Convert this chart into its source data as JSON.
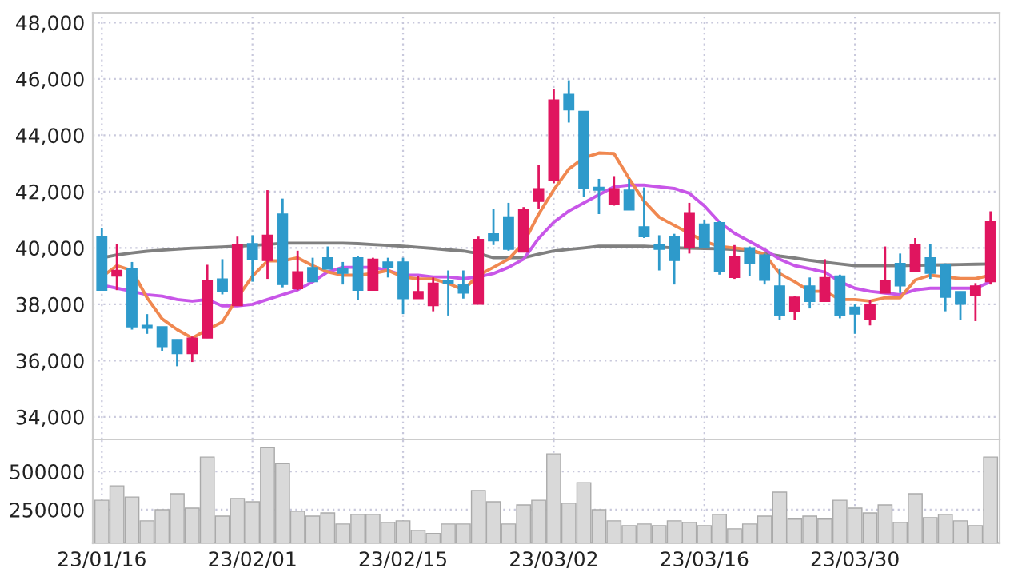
{
  "chart_data": [
    {
      "type": "candlestick",
      "tick_labels": "y",
      "grid": true,
      "categories": [
        null,
        null,
        null,
        null,
        null,
        null,
        null,
        null,
        null,
        null,
        null,
        null,
        null,
        null,
        null,
        null,
        null,
        null,
        null,
        null,
        null,
        null,
        null,
        null,
        null,
        null,
        null,
        null,
        null,
        null,
        null,
        null,
        null,
        null,
        null,
        null,
        null,
        null,
        null,
        null,
        null,
        null,
        null,
        null,
        null,
        null,
        null,
        null,
        null,
        null,
        null,
        null,
        null,
        null,
        null,
        null,
        null,
        null,
        null,
        null
      ],
      "ylim": [
        33200,
        48350
      ],
      "yticks": [
        {
          "value": 34000,
          "label": "34,000"
        },
        {
          "value": 36000,
          "label": "36,000"
        },
        {
          "value": 38000,
          "label": "38,000"
        },
        {
          "value": 40000,
          "label": "40,000"
        },
        {
          "value": 42000,
          "label": "42,000"
        },
        {
          "value": 44000,
          "label": "44,000"
        },
        {
          "value": 46000,
          "label": "46,000"
        },
        {
          "value": 48000,
          "label": "48,000"
        }
      ],
      "ohlc": [
        [
          40400,
          40700,
          38500,
          38500
        ],
        [
          39000,
          40150,
          38500,
          39200
        ],
        [
          39250,
          39500,
          37100,
          37200
        ],
        [
          37250,
          37650,
          36950,
          37150
        ],
        [
          37200,
          37200,
          36350,
          36500
        ],
        [
          36750,
          36750,
          35800,
          36250
        ],
        [
          36250,
          36850,
          35950,
          36800
        ],
        [
          36800,
          39400,
          36800,
          38850
        ],
        [
          38900,
          39600,
          38350,
          38450
        ],
        [
          37950,
          40400,
          37950,
          40100
        ],
        [
          40150,
          40450,
          38800,
          39600
        ],
        [
          39550,
          42050,
          38900,
          40450
        ],
        [
          41200,
          41750,
          38600,
          38700
        ],
        [
          38550,
          39900,
          38500,
          39150
        ],
        [
          39300,
          39650,
          38800,
          38800
        ],
        [
          39650,
          40050,
          39250,
          39250
        ],
        [
          39250,
          39500,
          38700,
          39100
        ],
        [
          39650,
          39700,
          38150,
          38500
        ],
        [
          38500,
          39650,
          38500,
          39600
        ],
        [
          39500,
          39650,
          38950,
          39300
        ],
        [
          39500,
          39650,
          37650,
          38200
        ],
        [
          38200,
          39000,
          38200,
          38450
        ],
        [
          37950,
          38950,
          37750,
          38750
        ],
        [
          38850,
          39200,
          37600,
          38750
        ],
        [
          38700,
          39200,
          38200,
          38400
        ],
        [
          38000,
          40400,
          38000,
          40300
        ],
        [
          40500,
          41400,
          40100,
          40250
        ],
        [
          41100,
          41600,
          39900,
          39950
        ],
        [
          39850,
          41450,
          39850,
          41350
        ],
        [
          41650,
          42950,
          41400,
          42100
        ],
        [
          42400,
          45650,
          42300,
          45250
        ],
        [
          45450,
          45950,
          44450,
          44900
        ],
        [
          44850,
          44850,
          41800,
          42100
        ],
        [
          42150,
          42450,
          41200,
          42050
        ],
        [
          41550,
          42550,
          41500,
          42100
        ],
        [
          42050,
          42450,
          41350,
          41350
        ],
        [
          40750,
          42150,
          40350,
          40400
        ],
        [
          40100,
          40450,
          39200,
          39950
        ],
        [
          40400,
          40500,
          38700,
          39550
        ],
        [
          40000,
          41600,
          39800,
          41250
        ],
        [
          40850,
          41000,
          40000,
          40000
        ],
        [
          40900,
          40950,
          39050,
          39150
        ],
        [
          38950,
          40100,
          38900,
          39700
        ],
        [
          40000,
          40050,
          39000,
          39450
        ],
        [
          39750,
          39800,
          38700,
          38850
        ],
        [
          38650,
          39250,
          37450,
          37600
        ],
        [
          37750,
          38300,
          37450,
          38250
        ],
        [
          38650,
          38950,
          37850,
          38100
        ],
        [
          38100,
          39600,
          38100,
          38950
        ],
        [
          39000,
          39050,
          37500,
          37600
        ],
        [
          37900,
          38000,
          36950,
          37650
        ],
        [
          37450,
          38150,
          37250,
          38000
        ],
        [
          38400,
          40050,
          38400,
          38850
        ],
        [
          39450,
          39800,
          38400,
          38650
        ],
        [
          39150,
          40350,
          39150,
          40100
        ],
        [
          39650,
          40150,
          38900,
          39100
        ],
        [
          39400,
          39450,
          37750,
          38250
        ],
        [
          38450,
          38450,
          37450,
          38000
        ],
        [
          38300,
          38750,
          37400,
          38650
        ],
        [
          38800,
          41300,
          38700,
          40950
        ]
      ],
      "colors": [
        "#2e9acb",
        "#e0155f",
        "#2e9acb",
        "#2e9acb",
        "#2e9acb",
        "#2e9acb",
        "#e0155f",
        "#e0155f",
        "#2e9acb",
        "#e0155f",
        "#2e9acb",
        "#e0155f",
        "#2e9acb",
        "#e0155f",
        "#2e9acb",
        "#2e9acb",
        "#2e9acb",
        "#2e9acb",
        "#e0155f",
        "#2e9acb",
        "#2e9acb",
        "#e0155f",
        "#e0155f",
        "#2e9acb",
        "#2e9acb",
        "#e0155f",
        "#2e9acb",
        "#2e9acb",
        "#e0155f",
        "#e0155f",
        "#e0155f",
        "#2e9acb",
        "#2e9acb",
        "#2e9acb",
        "#e0155f",
        "#2e9acb",
        "#2e9acb",
        "#2e9acb",
        "#2e9acb",
        "#e0155f",
        "#2e9acb",
        "#2e9acb",
        "#e0155f",
        "#2e9acb",
        "#2e9acb",
        "#2e9acb",
        "#e0155f",
        "#2e9acb",
        "#e0155f",
        "#2e9acb",
        "#2e9acb",
        "#e0155f",
        "#e0155f",
        "#2e9acb",
        "#e0155f",
        "#2e9acb",
        "#2e9acb",
        "#2e9acb",
        "#e0155f",
        "#e0155f"
      ],
      "series": [
        {
          "type": "line",
          "color": "#808080",
          "values": [
            39650,
            39750,
            39820,
            39880,
            39920,
            39960,
            39990,
            40010,
            40030,
            40060,
            40090,
            40120,
            40170,
            40170,
            40170,
            40170,
            40170,
            40150,
            40120,
            40090,
            40060,
            40020,
            39980,
            39930,
            39890,
            39800,
            39650,
            39650,
            39650,
            39780,
            39890,
            39950,
            40000,
            40060,
            40060,
            40060,
            40060,
            40030,
            40000,
            39990,
            39980,
            39970,
            39940,
            39880,
            39800,
            39710,
            39640,
            39560,
            39490,
            39430,
            39370,
            39370,
            39370,
            39370,
            39380,
            39390,
            39400,
            39410,
            39420,
            39430
          ]
        },
        {
          "type": "line",
          "color": "#c856e8",
          "values": [
            38680,
            38570,
            38460,
            38340,
            38290,
            38170,
            38110,
            38170,
            37940,
            37940,
            38000,
            38170,
            38340,
            38510,
            38800,
            39150,
            39310,
            39310,
            39310,
            39200,
            39030,
            39030,
            38970,
            38970,
            38910,
            38970,
            39090,
            39310,
            39600,
            40340,
            40910,
            41310,
            41600,
            41890,
            42170,
            42230,
            42230,
            42170,
            42110,
            41940,
            41490,
            40910,
            40520,
            40230,
            39940,
            39600,
            39370,
            39260,
            39140,
            38800,
            38570,
            38460,
            38400,
            38340,
            38510,
            38570,
            38570,
            38570,
            38570,
            38800
          ]
        },
        {
          "type": "line",
          "color": "#f08850",
          "values": [
            38970,
            39370,
            39200,
            38230,
            37480,
            37100,
            36800,
            37100,
            37370,
            38230,
            39000,
            39540,
            39540,
            39650,
            39370,
            39150,
            39030,
            39030,
            39090,
            39200,
            38970,
            38900,
            38900,
            38740,
            38510,
            39030,
            39310,
            39600,
            40170,
            41200,
            42060,
            42800,
            43200,
            43370,
            43350,
            42460,
            41660,
            41090,
            40800,
            40520,
            40230,
            40050,
            40000,
            39940,
            39770,
            39090,
            38800,
            38460,
            38460,
            38170,
            38170,
            38110,
            38230,
            38230,
            38860,
            39030,
            38970,
            38910,
            38910,
            39030
          ]
        }
      ]
    },
    {
      "type": "bar",
      "grid": true,
      "color": "#d9d9d9",
      "categories": [
        "23/01/16",
        null,
        null,
        null,
        null,
        null,
        null,
        null,
        null,
        null,
        "23/02/01",
        null,
        null,
        null,
        null,
        null,
        null,
        null,
        null,
        null,
        "23/02/15",
        null,
        null,
        null,
        null,
        null,
        null,
        null,
        null,
        null,
        "23/03/02",
        null,
        null,
        null,
        null,
        null,
        null,
        null,
        null,
        null,
        "23/03/16",
        null,
        null,
        null,
        null,
        null,
        null,
        null,
        null,
        null,
        "23/03/30",
        null,
        null,
        null,
        null,
        null,
        null,
        null,
        null,
        null
      ],
      "ylim": [
        30000,
        710000
      ],
      "yticks": [
        250000,
        500000
      ],
      "values": [
        312000,
        406000,
        333000,
        177000,
        250000,
        354000,
        260000,
        594000,
        208000,
        323000,
        302000,
        656000,
        552000,
        240000,
        208000,
        229000,
        156000,
        219000,
        219000,
        167000,
        177000,
        115000,
        94000,
        156000,
        156000,
        375000,
        302000,
        156000,
        281000,
        312000,
        615000,
        292000,
        427000,
        250000,
        177000,
        146000,
        156000,
        146000,
        177000,
        167000,
        146000,
        219000,
        125000,
        156000,
        208000,
        365000,
        188000,
        208000,
        188000,
        312000,
        260000,
        229000,
        281000,
        167000,
        354000,
        198000,
        219000,
        177000,
        146000,
        594000
      ]
    }
  ]
}
